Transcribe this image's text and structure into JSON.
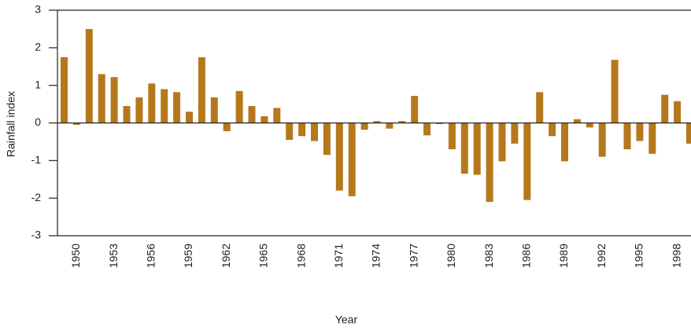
{
  "chart_data": {
    "type": "bar",
    "x_label": "Year",
    "y_label": "Rainfall index",
    "categories": [
      null,
      "1950",
      null,
      null,
      "1953",
      null,
      null,
      "1956",
      null,
      null,
      "1959",
      null,
      null,
      "1962",
      null,
      null,
      "1965",
      null,
      null,
      "1968",
      null,
      null,
      "1971",
      null,
      null,
      "1974",
      null,
      null,
      "1977",
      null,
      null,
      "1980",
      null,
      null,
      "1983",
      null,
      null,
      "1986",
      null,
      null,
      "1989",
      null,
      null,
      "1992",
      null,
      null,
      "1995",
      null,
      null,
      "1998",
      null
    ],
    "values": [
      1.75,
      -0.05,
      2.5,
      1.3,
      1.22,
      0.45,
      0.68,
      1.05,
      0.9,
      0.82,
      0.3,
      1.75,
      0.68,
      -0.22,
      0.85,
      0.45,
      0.18,
      0.4,
      -0.45,
      -0.35,
      -0.48,
      -0.85,
      -1.8,
      -1.95,
      -0.18,
      0.05,
      -0.15,
      0.05,
      0.72,
      -0.33,
      -0.03,
      -0.7,
      -1.35,
      -1.38,
      -2.1,
      -1.02,
      -0.55,
      -2.05,
      0.82,
      -0.35,
      -1.02,
      0.1,
      -0.12,
      -0.9,
      1.68,
      -0.7,
      -0.48,
      -0.82,
      0.75,
      0.58,
      -0.55
    ],
    "color": "#b5781c",
    "ylim": [
      -3,
      3
    ],
    "yticks": [
      -3,
      -2,
      -1,
      0,
      1,
      2,
      3
    ]
  }
}
